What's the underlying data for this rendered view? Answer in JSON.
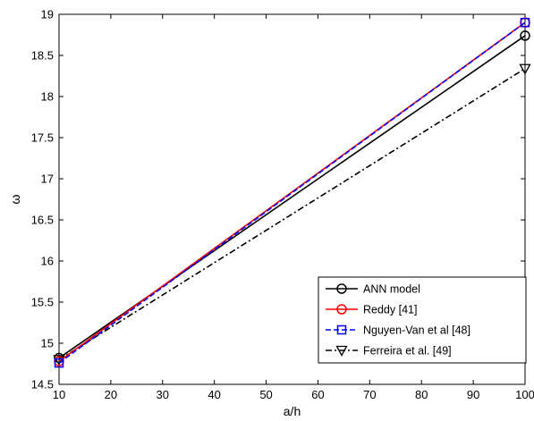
{
  "chart_data": {
    "type": "line",
    "xlabel": "a/h",
    "ylabel": "ω",
    "xlim": [
      10,
      100
    ],
    "ylim": [
      14.5,
      19
    ],
    "xticks": [
      "10",
      "20",
      "30",
      "40",
      "50",
      "60",
      "70",
      "80",
      "90",
      "100"
    ],
    "yticks": [
      "14.5",
      "15",
      "15.5",
      "16",
      "16.5",
      "17",
      "17.5",
      "18",
      "18.5",
      "19"
    ],
    "grid": false,
    "legend_position": "bottom-right",
    "series": [
      {
        "name": "ANN model",
        "color": "#000000",
        "line": "solid",
        "marker": "circle",
        "x": [
          10,
          100
        ],
        "y": [
          14.82,
          18.74
        ]
      },
      {
        "name": "Reddy [41]",
        "color": "#ff0000",
        "line": "solid",
        "marker": "circle",
        "x": [
          10,
          100
        ],
        "y": [
          14.78,
          18.9
        ]
      },
      {
        "name": "Nguyen-Van et al [48]",
        "color": "#0000ff",
        "line": "dashed",
        "marker": "square",
        "x": [
          10,
          100
        ],
        "y": [
          14.76,
          18.9
        ]
      },
      {
        "name": "Ferreira et al. [49]",
        "color": "#000000",
        "line": "dashdot",
        "marker": "triangle-down",
        "x": [
          10,
          100
        ],
        "y": [
          14.8,
          18.34
        ]
      }
    ]
  }
}
